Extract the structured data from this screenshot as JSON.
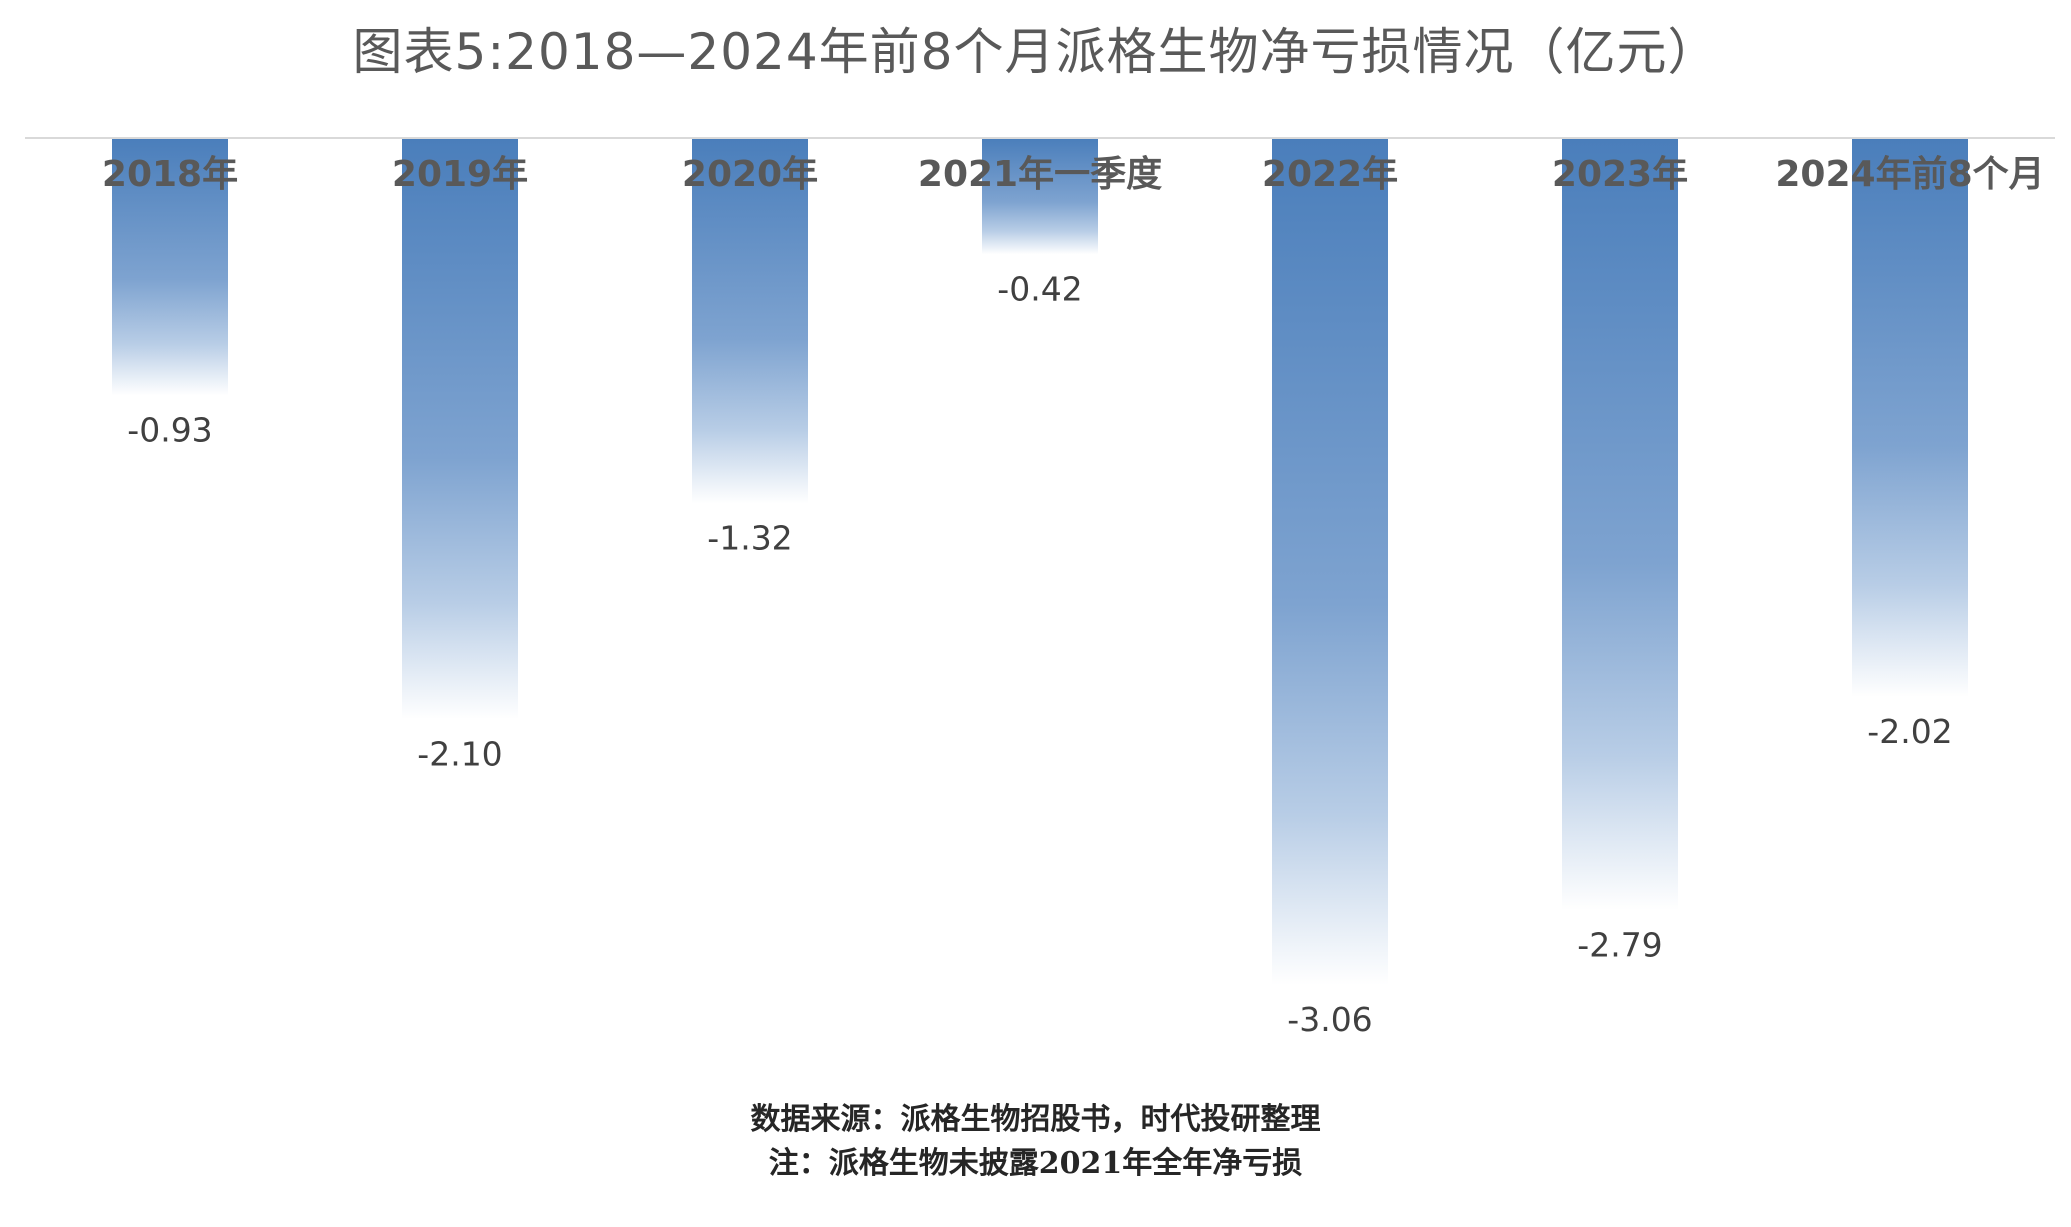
{
  "chart_data": {
    "type": "bar",
    "title": "图表5:2018—2024年前8个月派格生物净亏损情况（亿元）",
    "categories": [
      "2018年",
      "2019年",
      "2020年",
      "2021年一季度",
      "2022年",
      "2023年",
      "2024年前8个月"
    ],
    "series": [
      {
        "values": [
          -0.93,
          -2.1,
          -1.32,
          -0.42,
          -3.06,
          -2.79,
          -2.02
        ]
      }
    ],
    "value_labels": [
      "-0.93",
      "-2.10",
      "-1.32",
      "-0.42",
      "-3.06",
      "-2.79",
      "-2.02"
    ],
    "ylim": [
      -3.06,
      0
    ],
    "xlabel": "",
    "ylabel": "",
    "legend": "none",
    "grid": false,
    "colors": {
      "bar_top": "#4a7ebb",
      "bar_bottom": "#ffffff",
      "axis": "#d9d9d9"
    }
  },
  "footnotes": {
    "source": "数据来源：派格生物招股书，时代投研整理",
    "note": "注：派格生物未披露2021年全年净亏损"
  }
}
